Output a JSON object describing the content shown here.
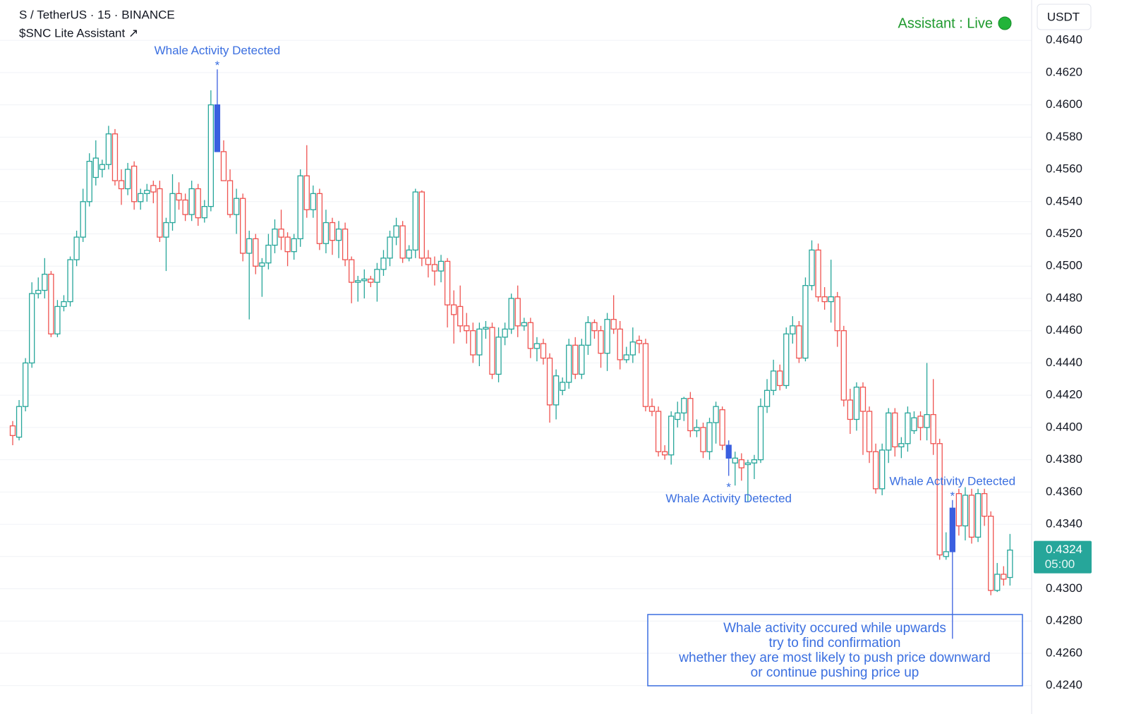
{
  "chart_data": {
    "type": "candlestick",
    "title": "S / TetherUS · 15 · BINANCE",
    "subtitle": "$SNC Lite Assistant ↗",
    "status": "Assistant : Live",
    "y_axis_label": "USDT",
    "last_price": 0.4324,
    "countdown": "05:00",
    "up_color": "#26a69a",
    "down_color": "#ef5350",
    "highlight_color": "#3a5fe0",
    "grid": true,
    "ylim": [
      0.4232,
      0.4665
    ],
    "yticks": [
      {
        "value": 0.424,
        "label": "0.4240"
      },
      {
        "value": 0.426,
        "label": "0.4260"
      },
      {
        "value": 0.428,
        "label": "0.4280"
      },
      {
        "value": 0.43,
        "label": "0.4300"
      },
      {
        "value": 0.432,
        "label": "0.4320"
      },
      {
        "value": 0.434,
        "label": "0.4340"
      },
      {
        "value": 0.436,
        "label": "0.4360"
      },
      {
        "value": 0.438,
        "label": "0.4380"
      },
      {
        "value": 0.44,
        "label": "0.4400"
      },
      {
        "value": 0.442,
        "label": "0.4420"
      },
      {
        "value": 0.444,
        "label": "0.4440"
      },
      {
        "value": 0.446,
        "label": "0.4460"
      },
      {
        "value": 0.448,
        "label": "0.4480"
      },
      {
        "value": 0.45,
        "label": "0.4500"
      },
      {
        "value": 0.452,
        "label": "0.4520"
      },
      {
        "value": 0.454,
        "label": "0.4540"
      },
      {
        "value": 0.456,
        "label": "0.4560"
      },
      {
        "value": 0.458,
        "label": "0.4580"
      },
      {
        "value": 0.46,
        "label": "0.4600"
      },
      {
        "value": 0.462,
        "label": "0.4620"
      },
      {
        "value": 0.464,
        "label": "0.4640"
      }
    ],
    "open": [
      0.4401,
      0.4394,
      0.4413,
      0.444,
      0.4483,
      0.4485,
      0.4495,
      0.4458,
      0.4475,
      0.4478,
      0.4504,
      0.4518,
      0.454,
      0.4555,
      0.456,
      0.4563,
      0.4582,
      0.4553,
      0.4548,
      0.4562,
      0.454,
      0.4545,
      0.455,
      0.4548,
      0.4518,
      0.4527,
      0.4545,
      0.4541,
      0.4532,
      0.4548,
      0.453,
      0.4537,
      0.46,
      0.4571,
      0.4553,
      0.4532,
      0.4542,
      0.4508,
      0.4517,
      0.45,
      0.4502,
      0.4513,
      0.4523,
      0.4518,
      0.4509,
      0.4517,
      0.4556,
      0.4535,
      0.4545,
      0.4514,
      0.4527,
      0.4516,
      0.4523,
      0.4504,
      0.449,
      0.4491,
      0.4492,
      0.449,
      0.4498,
      0.4505,
      0.4518,
      0.4525,
      0.4505,
      0.451,
      0.4546,
      0.4505,
      0.4501,
      0.4497,
      0.4503,
      0.4476,
      0.4475,
      0.4463,
      0.446,
      0.4445,
      0.4461,
      0.4462,
      0.4433,
      0.4456,
      0.4461,
      0.448,
      0.4463,
      0.4465,
      0.4449,
      0.4452,
      0.4443,
      0.4414,
      0.4423,
      0.4428,
      0.4451,
      0.4433,
      0.4451,
      0.4465,
      0.446,
      0.4446,
      0.4467,
      0.4461,
      0.4442,
      0.4445,
      0.4454,
      0.4452,
      0.4413,
      0.441,
      0.4385,
      0.4383,
      0.4405,
      0.4409,
      0.4418,
      0.4398,
      0.44,
      0.4385,
      0.4403,
      0.4411,
      0.4389,
      0.4378,
      0.438,
      0.4377,
      0.4378,
      0.438,
      0.4413,
      0.4423,
      0.4435,
      0.4426,
      0.4458,
      0.4463,
      0.4443,
      0.4488,
      0.451,
      0.4481,
      0.4478,
      0.4481,
      0.446,
      0.4417,
      0.4405,
      0.4425,
      0.441,
      0.4385,
      0.4362,
      0.4386,
      0.4409,
      0.4388,
      0.439,
      0.4398,
      0.4407,
      0.44,
      0.4408,
      0.439,
      0.432,
      0.4323,
      0.4359,
      0.4339,
      0.4358,
      0.4332,
      0.4359,
      0.4345,
      0.4299,
      0.4309,
      0.4307
    ],
    "high": [
      0.4404,
      0.4417,
      0.4443,
      0.449,
      0.4493,
      0.4505,
      0.4497,
      0.4479,
      0.4482,
      0.4506,
      0.4522,
      0.4548,
      0.457,
      0.4578,
      0.4566,
      0.4587,
      0.4585,
      0.456,
      0.4564,
      0.4565,
      0.4548,
      0.4551,
      0.4553,
      0.4553,
      0.453,
      0.4557,
      0.4552,
      0.4545,
      0.4553,
      0.4551,
      0.4541,
      0.4609,
      0.4622,
      0.4578,
      0.456,
      0.4548,
      0.4545,
      0.4522,
      0.452,
      0.4505,
      0.452,
      0.4529,
      0.4535,
      0.4521,
      0.452,
      0.456,
      0.4575,
      0.455,
      0.4548,
      0.4535,
      0.453,
      0.4528,
      0.4527,
      0.4506,
      0.4494,
      0.4498,
      0.4494,
      0.4502,
      0.451,
      0.4522,
      0.453,
      0.4528,
      0.4513,
      0.4548,
      0.4547,
      0.451,
      0.4506,
      0.4507,
      0.4505,
      0.4485,
      0.4488,
      0.4471,
      0.4465,
      0.4465,
      0.4466,
      0.4465,
      0.4462,
      0.4465,
      0.4483,
      0.4488,
      0.4468,
      0.4468,
      0.4456,
      0.4455,
      0.4446,
      0.4436,
      0.4431,
      0.4455,
      0.4456,
      0.4455,
      0.4469,
      0.4467,
      0.4463,
      0.4471,
      0.4482,
      0.4466,
      0.445,
      0.4462,
      0.4457,
      0.4455,
      0.4418,
      0.4413,
      0.4389,
      0.441,
      0.4416,
      0.4419,
      0.4422,
      0.4405,
      0.4403,
      0.4406,
      0.4416,
      0.4413,
      0.4392,
      0.4385,
      0.4384,
      0.438,
      0.4383,
      0.4418,
      0.443,
      0.4442,
      0.4439,
      0.4462,
      0.4469,
      0.4466,
      0.4493,
      0.4516,
      0.4514,
      0.4487,
      0.4504,
      0.4484,
      0.4463,
      0.4424,
      0.4428,
      0.4428,
      0.4413,
      0.439,
      0.439,
      0.4412,
      0.4412,
      0.4394,
      0.4413,
      0.441,
      0.441,
      0.444,
      0.443,
      0.4393,
      0.4335,
      0.4355,
      0.4362,
      0.4363,
      0.4362,
      0.4362,
      0.4362,
      0.4348,
      0.4316,
      0.4314,
      0.4334
    ],
    "low": [
      0.4389,
      0.4392,
      0.441,
      0.4437,
      0.448,
      0.448,
      0.4456,
      0.4456,
      0.4472,
      0.4475,
      0.45,
      0.4515,
      0.4537,
      0.455,
      0.4555,
      0.456,
      0.455,
      0.4538,
      0.4544,
      0.4535,
      0.4535,
      0.454,
      0.4539,
      0.4515,
      0.4497,
      0.4522,
      0.4535,
      0.4528,
      0.4528,
      0.4525,
      0.4527,
      0.4534,
      0.4571,
      0.4555,
      0.453,
      0.452,
      0.4503,
      0.4467,
      0.4495,
      0.4481,
      0.4498,
      0.4508,
      0.451,
      0.45,
      0.4504,
      0.4512,
      0.453,
      0.453,
      0.451,
      0.4508,
      0.4507,
      0.4505,
      0.45,
      0.4477,
      0.4478,
      0.448,
      0.4487,
      0.4478,
      0.4494,
      0.45,
      0.4513,
      0.4502,
      0.4503,
      0.4505,
      0.45,
      0.4493,
      0.4488,
      0.449,
      0.4462,
      0.4452,
      0.4459,
      0.4452,
      0.444,
      0.4438,
      0.4455,
      0.443,
      0.4428,
      0.4451,
      0.4458,
      0.4456,
      0.446,
      0.4443,
      0.4441,
      0.4439,
      0.4403,
      0.4405,
      0.442,
      0.4424,
      0.443,
      0.443,
      0.4445,
      0.4455,
      0.4437,
      0.4435,
      0.4458,
      0.4436,
      0.444,
      0.444,
      0.4446,
      0.441,
      0.4407,
      0.4382,
      0.438,
      0.4377,
      0.44,
      0.4404,
      0.4394,
      0.4394,
      0.4381,
      0.438,
      0.439,
      0.4386,
      0.437,
      0.4364,
      0.4367,
      0.4354,
      0.4368,
      0.4378,
      0.4409,
      0.442,
      0.4423,
      0.4424,
      0.4452,
      0.444,
      0.4441,
      0.4485,
      0.4478,
      0.4473,
      0.4465,
      0.445,
      0.4413,
      0.4396,
      0.4398,
      0.4383,
      0.4378,
      0.4359,
      0.4358,
      0.4378,
      0.4382,
      0.4381,
      0.4385,
      0.4396,
      0.4392,
      0.4392,
      0.4383,
      0.4318,
      0.4318,
      0.4269,
      0.4333,
      0.433,
      0.4328,
      0.4329,
      0.4339,
      0.4296,
      0.4298,
      0.4302,
      0.4302
    ],
    "close": [
      0.4395,
      0.4413,
      0.444,
      0.4483,
      0.4485,
      0.4495,
      0.4458,
      0.4475,
      0.4478,
      0.4504,
      0.4518,
      0.454,
      0.4565,
      0.4567,
      0.4563,
      0.4582,
      0.4553,
      0.4548,
      0.456,
      0.454,
      0.4545,
      0.4547,
      0.4546,
      0.4518,
      0.4527,
      0.4545,
      0.4541,
      0.4532,
      0.4548,
      0.453,
      0.4537,
      0.46,
      0.4571,
      0.4553,
      0.4532,
      0.4542,
      0.4508,
      0.4517,
      0.45,
      0.4502,
      0.4513,
      0.4523,
      0.4518,
      0.4509,
      0.4517,
      0.4556,
      0.4535,
      0.4545,
      0.4514,
      0.4527,
      0.4516,
      0.4523,
      0.4504,
      0.449,
      0.4491,
      0.4492,
      0.449,
      0.4498,
      0.4505,
      0.4518,
      0.4525,
      0.4505,
      0.451,
      0.4546,
      0.4505,
      0.4501,
      0.4497,
      0.4503,
      0.4476,
      0.447,
      0.4463,
      0.446,
      0.4445,
      0.4461,
      0.4462,
      0.4433,
      0.4456,
      0.4461,
      0.448,
      0.4463,
      0.4465,
      0.4449,
      0.4452,
      0.4443,
      0.4414,
      0.4432,
      0.4428,
      0.4451,
      0.4433,
      0.4451,
      0.4465,
      0.446,
      0.4446,
      0.4467,
      0.4461,
      0.4442,
      0.4445,
      0.4453,
      0.4452,
      0.4413,
      0.441,
      0.4385,
      0.4383,
      0.4407,
      0.4409,
      0.4418,
      0.4398,
      0.44,
      0.4385,
      0.4403,
      0.4413,
      0.4389,
      0.4381,
      0.4381,
      0.4375,
      0.4378,
      0.438,
      0.4413,
      0.4423,
      0.4435,
      0.4426,
      0.4458,
      0.4463,
      0.4443,
      0.4488,
      0.451,
      0.4481,
      0.4478,
      0.4481,
      0.446,
      0.4417,
      0.4405,
      0.4425,
      0.441,
      0.4385,
      0.4362,
      0.4386,
      0.4409,
      0.4388,
      0.439,
      0.4409,
      0.4406,
      0.44,
      0.4408,
      0.439,
      0.4321,
      0.4323,
      0.435,
      0.4339,
      0.4358,
      0.4332,
      0.4359,
      0.4345,
      0.4299,
      0.4309,
      0.4306,
      0.4324
    ],
    "annotations": [
      {
        "text": "Whale Activity Detected",
        "marker": "*",
        "candle": 32,
        "placement": "above"
      },
      {
        "text": "Whale Activity Detected",
        "marker": "*",
        "candle": 112,
        "placement": "below"
      },
      {
        "text": "Whale Activity Detected",
        "marker": "*",
        "candle": 147,
        "placement": "above"
      }
    ],
    "note_lines": [
      "Whale activity occured while upwards",
      "try to find confirmation",
      "whether they are most likely to push price downward",
      "or continue pushing price up"
    ]
  }
}
